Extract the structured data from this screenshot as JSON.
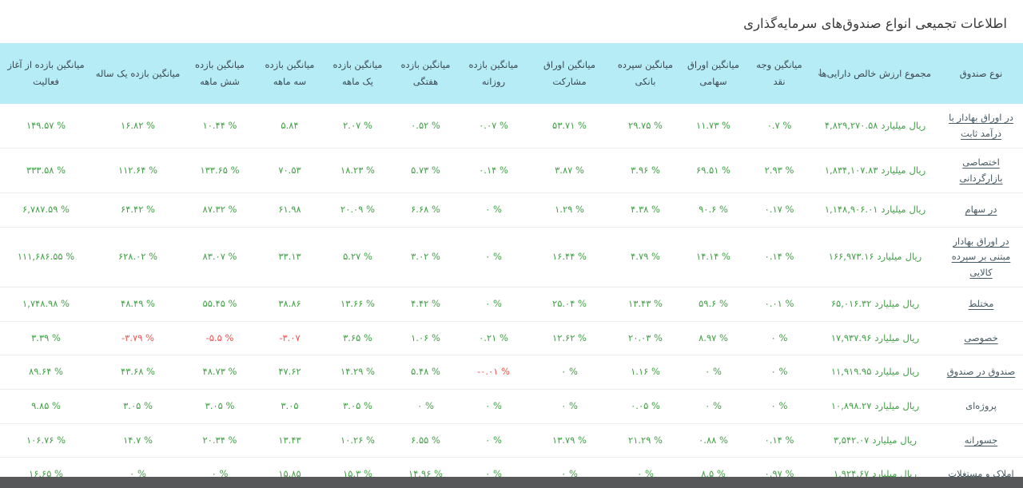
{
  "page": {
    "title": "اطلاعات تجمیعی انواع صندوق‌های سرمایه‌گذاری"
  },
  "colors": {
    "header_background": "#b5ecf5",
    "positive_value": "#43a047",
    "negative_value": "#ef5350",
    "fund_link": "#455a64",
    "bottom_bar": "#57585a"
  },
  "table": {
    "sort_icon": "↓",
    "sorted_column": "total_nav",
    "nav_unit": "میلیارد ریال",
    "columns": [
      {
        "key": "fund_type",
        "label": "نوع صندوق"
      },
      {
        "key": "total_nav",
        "label": "مجموع ارزش خالص دارایی‌ها"
      },
      {
        "key": "avg_cash",
        "label": "میانگین وجه نقد"
      },
      {
        "key": "avg_equity",
        "label": "میانگین اوراق سهامی"
      },
      {
        "key": "avg_bank_deposit",
        "label": "میانگین سپرده بانکی"
      },
      {
        "key": "avg_participation_bonds",
        "label": "میانگین اوراق مشارکت"
      },
      {
        "key": "avg_daily_return",
        "label": "میانگین بازده روزانه"
      },
      {
        "key": "avg_weekly_return",
        "label": "میانگین بازده هفتگی"
      },
      {
        "key": "avg_1m_return",
        "label": "میانگین بازده یک ماهه"
      },
      {
        "key": "avg_3m_return",
        "label": "میانگین بازده سه ماهه"
      },
      {
        "key": "avg_6m_return",
        "label": "میانگین بازده شش ماهه"
      },
      {
        "key": "avg_1y_return",
        "label": "میانگین بازده یک ساله"
      },
      {
        "key": "avg_inception_return",
        "label": "میانگین بازده از آغاز فعالیت"
      }
    ],
    "rows": [
      {
        "fund_type": "در اوراق بهادار با درآمد ثابت",
        "is_link": true,
        "total_nav": "۴,۸۲۹,۲۷۰.۵۸",
        "values": [
          "۰.۷ %",
          "۱۱.۷۳ %",
          "۲۹.۷۵ %",
          "۵۳.۷۱ %",
          "۰.۰۷ %",
          "۰.۵۲ %",
          "۲.۰۷ %",
          "۵.۸۴",
          "۱۰.۴۴ %",
          "۱۶.۸۲ %",
          "۱۴۹.۵۷ %"
        ]
      },
      {
        "fund_type": "اختصاصی بازارگردانی",
        "is_link": true,
        "total_nav": "۱,۸۳۴,۱۰۷.۸۳",
        "values": [
          "۲.۹۳ %",
          "۶۹.۵۱ %",
          "۳.۹۶ %",
          "۳.۸۷ %",
          "۰.۱۴ %",
          "۵.۷۳ %",
          "۱۸.۲۳ %",
          "۷۰.۵۳",
          "۱۳۳.۶۵ %",
          "۱۱۲.۶۴ %",
          "۳۳۳.۵۸ %"
        ]
      },
      {
        "fund_type": "در سهام",
        "is_link": true,
        "total_nav": "۱,۱۴۸,۹۰۶.۰۱",
        "values": [
          "۰.۱۷ %",
          "۹۰.۶ %",
          "۴.۳۸ %",
          "۱.۲۹ %",
          "۰ %",
          "۶.۶۸ %",
          "۲۰.۰۹ %",
          "۶۱.۹۸",
          "۸۷.۳۲ %",
          "۶۴.۴۲ %",
          "۶,۷۸۷.۵۹ %"
        ]
      },
      {
        "fund_type": "در اوراق بهادار مبتنی بر سپرده کالایی",
        "is_link": true,
        "total_nav": "۱۶۶,۹۷۳.۱۶",
        "values": [
          "۰.۱۴ %",
          "۱۴.۱۴ %",
          "۴.۷۹ %",
          "۱۶.۴۴ %",
          "۰ %",
          "۳.۰۲ %",
          "۵.۲۷ %",
          "۳۳.۱۳",
          "۸۳.۰۷ %",
          "۶۲۸.۰۲ %",
          "۱۱۱,۶۸۶.۵۵ %"
        ]
      },
      {
        "fund_type": "مختلط",
        "is_link": true,
        "total_nav": "۶۵,۰۱۶.۳۲",
        "values": [
          "۰.۰۱ %",
          "۵۹.۶ %",
          "۱۳.۴۳ %",
          "۲۵.۰۴ %",
          "۰ %",
          "۴.۴۲ %",
          "۱۳.۶۶ %",
          "۳۸.۸۶",
          "۵۵.۴۵ %",
          "۴۸.۴۹ %",
          "۱,۷۴۸.۹۸ %"
        ]
      },
      {
        "fund_type": "خصوصی",
        "is_link": true,
        "total_nav": "۱۷,۹۳۷.۹۶",
        "values": [
          "۰ %",
          "۸.۹۷ %",
          "۲۰.۰۳ %",
          "۱۲.۶۲ %",
          "۰.۲۱ %",
          "۱.۰۶ %",
          "۳.۶۵ %",
          "-۳.۰۷",
          "-۵.۵ %",
          "-۳.۷۹ %",
          "۳.۳۹ %"
        ]
      },
      {
        "fund_type": "صندوق در صندوق",
        "is_link": true,
        "total_nav": "۱۱,۹۱۹.۹۵",
        "values": [
          "۰ %",
          "۰ %",
          "۱.۱۶ %",
          "۰ %",
          "-۰.۰۱ %",
          "۵.۴۸ %",
          "۱۴.۲۹ %",
          "۴۷.۶۲",
          "۴۸.۷۳ %",
          "۴۳.۶۸ %",
          "۸۹.۶۴ %"
        ]
      },
      {
        "fund_type": "پروژه‌ای",
        "is_link": false,
        "total_nav": "۱۰,۸۹۸.۲۷",
        "values": [
          "۰ %",
          "۰ %",
          "۰.۰۵ %",
          "۰ %",
          "۰ %",
          "۰ %",
          "۳.۰۵ %",
          "۳.۰۵",
          "۳.۰۵ %",
          "۳.۰۵ %",
          "۹.۸۵ %"
        ]
      },
      {
        "fund_type": "جسورانه",
        "is_link": true,
        "total_nav": "۳,۵۴۲.۰۷",
        "values": [
          "۰.۱۴ %",
          "۰.۸۸ %",
          "۲۱.۲۹ %",
          "۱۳.۷۹ %",
          "۰ %",
          "۶.۵۵ %",
          "۱۰.۲۶ %",
          "۱۳.۴۳",
          "۲۰.۳۴ %",
          "۱۴.۷ %",
          "۱۰۶.۷۶ %"
        ]
      },
      {
        "fund_type": "املاک و مستغلات",
        "is_link": true,
        "total_nav": "۱,۹۲۴.۶۷",
        "values": [
          "۰.۹۷ %",
          "۸.۵ %",
          "۰ %",
          "۰ %",
          "۰ %",
          "۱۴.۹۶ %",
          "۱۵.۳ %",
          "۱۵.۸۵",
          "۰ %",
          "۰ %",
          "۱۶.۶۵ %"
        ]
      }
    ]
  }
}
